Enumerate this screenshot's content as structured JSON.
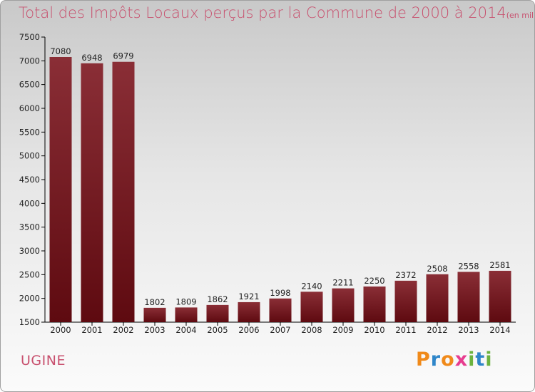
{
  "title": {
    "main": "Total des Impôts Locaux perçus par la Commune de 2000 à 2014",
    "unit": "(en milliers d'€)"
  },
  "commune": "UGINE",
  "logo": {
    "p": "P",
    "r": "r",
    "o": "o",
    "x": "x",
    "i": "i",
    "t": "t",
    "i2": "i"
  },
  "colors": {
    "bar_top": "#8a2e36",
    "bar_bottom": "#5e0a10",
    "text": "#c8506e",
    "axis": "#000000"
  },
  "chart_data": {
    "type": "bar",
    "title": "Total des Impôts Locaux perçus par la Commune de 2000 à 2014",
    "xlabel": "",
    "ylabel": "",
    "categories": [
      "2000",
      "2001",
      "2002",
      "2003",
      "2004",
      "2005",
      "2006",
      "2007",
      "2008",
      "2009",
      "2010",
      "2011",
      "2012",
      "2013",
      "2014"
    ],
    "values": [
      7080,
      6948,
      6979,
      1802,
      1809,
      1862,
      1921,
      1998,
      2140,
      2211,
      2250,
      2372,
      2508,
      2558,
      2581
    ],
    "value_labels": [
      "7080",
      "6948",
      "6979",
      "1802",
      "1809",
      "1862",
      "1921",
      "1998",
      "2140",
      "2211",
      "2250",
      "2372",
      "2508",
      "2558",
      "2581"
    ],
    "ylim": [
      1500,
      7500
    ],
    "yticks": [
      "1500",
      "2000",
      "2500",
      "3000",
      "3500",
      "4000",
      "4500",
      "5000",
      "5500",
      "6000",
      "6500",
      "7000",
      "7500"
    ],
    "grid": false
  }
}
